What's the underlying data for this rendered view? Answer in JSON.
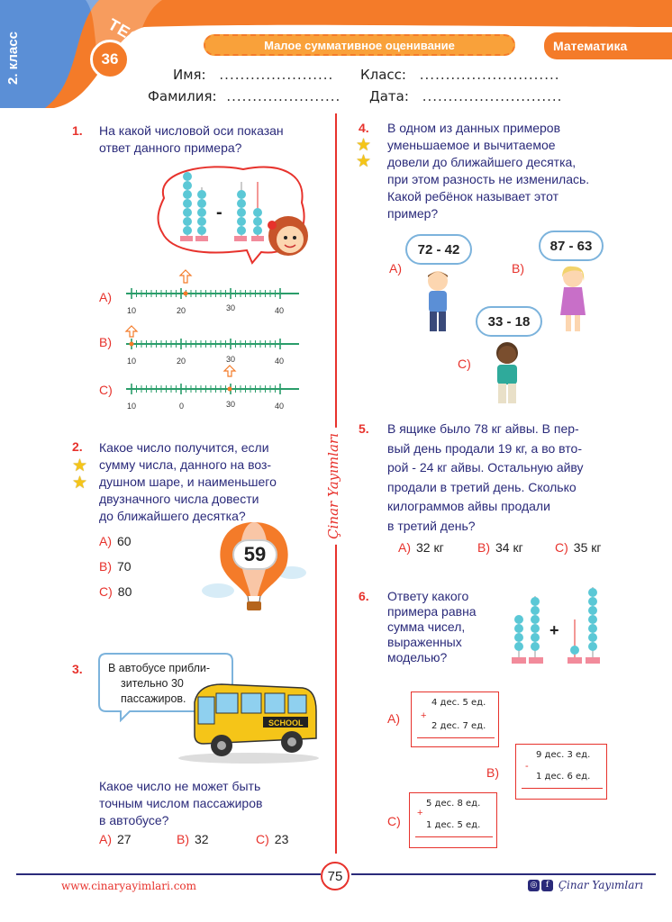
{
  "header": {
    "grade": "2. класс",
    "test_word": "ТЕСТ",
    "test_number": "36",
    "banner": "Малое суммативное оценивание",
    "subject": "Математика",
    "name_label": "Имя:",
    "surname_label": "Фамилия:",
    "class_label": "Класс:",
    "date_label": "Дата:",
    "short_dots": "......................",
    "long_dots": "..........................."
  },
  "colors": {
    "accent_red": "#e7322c",
    "orange": "#f47b29",
    "blue": "#5b8fd6",
    "text_navy": "#2a2a7a"
  },
  "q1": {
    "num": "1.",
    "text_lines": [
      "На какой числовой оси показан",
      "ответ данного примера?"
    ],
    "minus": "-",
    "options": [
      {
        "letter": "A)",
        "labels": [
          "10",
          "20",
          "30",
          "40"
        ]
      },
      {
        "letter": "B)",
        "labels": [
          "10",
          "20",
          "30",
          "40"
        ]
      },
      {
        "letter": "C)",
        "labels": [
          "10",
          "0",
          "30",
          "40"
        ]
      }
    ]
  },
  "q2": {
    "num": "2.",
    "text_lines": [
      "Какое число получится, если",
      "сумму числа, данного на воз-",
      "душном шаре, и наименьшего",
      "двузначного числа довести",
      "до ближайшего десятка?"
    ],
    "balloon_number": "59",
    "options": [
      {
        "letter": "A)",
        "value": "60"
      },
      {
        "letter": "B)",
        "value": "70"
      },
      {
        "letter": "C)",
        "value": "80"
      }
    ]
  },
  "q3": {
    "num": "3.",
    "bubble_lines": [
      "В автобусе прибли-",
      "зительно 30",
      "пассажиров."
    ],
    "bus_sign": "SCHOOL",
    "text_lines": [
      "Какое число не может быть",
      "точным числом пассажиров",
      "в автобусе?"
    ],
    "options": [
      {
        "letter": "A)",
        "value": "27"
      },
      {
        "letter": "B)",
        "value": "32"
      },
      {
        "letter": "C)",
        "value": "23"
      }
    ]
  },
  "q4": {
    "num": "4.",
    "text_lines": [
      "В одном из данных примеров",
      "уменьшаемое и вычитаемое",
      "довели до ближайшего десятка,",
      "при этом разность не изменилась.",
      "Какой ребёнок называет этот",
      "пример?"
    ],
    "options": [
      {
        "letter": "A)",
        "expr": "72 - 42"
      },
      {
        "letter": "B)",
        "expr": "87 - 63"
      },
      {
        "letter": "C)",
        "expr": "33 - 18"
      }
    ]
  },
  "q5": {
    "num": "5.",
    "text_lines": [
      "В ящике было 78 кг айвы. В пер-",
      "вый день продали 19 кг, а во вто-",
      "рой - 24 кг айвы. Остальную айву",
      "продали в третий день. Сколько",
      "килограммов айвы продали",
      "в третий день?"
    ],
    "options": [
      {
        "letter": "A)",
        "value": "32 кг"
      },
      {
        "letter": "B)",
        "value": "34 кг"
      },
      {
        "letter": "C)",
        "value": "35 кг"
      }
    ]
  },
  "q6": {
    "num": "6.",
    "text_lines": [
      "Ответу какого",
      "примера равна",
      "сумма чисел,",
      "выраженных",
      "моделью?"
    ],
    "plus": "+",
    "options": [
      {
        "letter": "A)",
        "sign": "+",
        "row1": "4 дес. 5 ед.",
        "row2": "2 дес. 7 ед."
      },
      {
        "letter": "B)",
        "sign": "-",
        "row1": "9 дес. 3 ед.",
        "row2": "1 дес. 6 ед."
      },
      {
        "letter": "C)",
        "sign": "+",
        "row1": "5 дес. 8 ед.",
        "row2": "1 дес. 5 ед."
      }
    ]
  },
  "footer": {
    "url": "www.cinaryayimlari.com",
    "page": "75",
    "brand": "Çinar Yayımları",
    "side_brand": "Çinar Yayımları"
  }
}
